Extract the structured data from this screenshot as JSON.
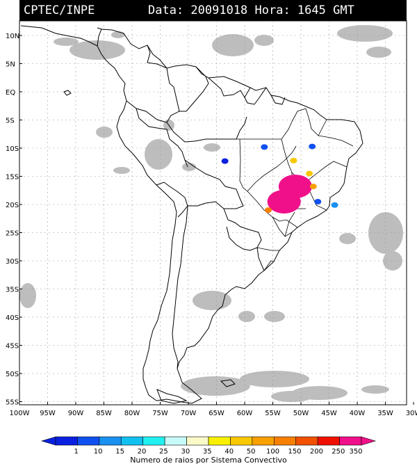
{
  "header": {
    "title": "CPTEC/INPE",
    "datetime": "Data: 20091018 Hora: 1645 GMT"
  },
  "lat_labels": [
    "10N",
    "5N",
    "EQ",
    "5S",
    "10S",
    "15S",
    "20S",
    "25S",
    "30S",
    "35S",
    "40S",
    "45S",
    "50S",
    "55S"
  ],
  "lon_labels": [
    "100W",
    "95W",
    "90W",
    "85W",
    "80W",
    "75W",
    "70W",
    "65W",
    "60W",
    "55W",
    "50W",
    "45W",
    "40W",
    "35W",
    "30W"
  ],
  "colorbar": {
    "caption": "Numero de raios por Sistema Convectivo",
    "ticks": [
      "1",
      "10",
      "15",
      "20",
      "25",
      "30",
      "35",
      "40",
      "50",
      "100",
      "150",
      "200",
      "250",
      "350"
    ],
    "colors": [
      "#0a20e0",
      "#1050f0",
      "#1a90f0",
      "#10c0f0",
      "#20f0f0",
      "#c8fafa",
      "#fafac8",
      "#f8f000",
      "#f8c800",
      "#f8a000",
      "#f88000",
      "#f05000",
      "#f01000",
      "#f0108a"
    ]
  },
  "colors": {
    "cloud": "#bdbdbd",
    "map_line": "#000000",
    "grid": "#888888"
  },
  "convective_systems": [
    {
      "lon": -53.0,
      "lat": -19.5,
      "color": "#f0108a"
    },
    {
      "lon": -51.0,
      "lat": -16.8,
      "color": "#f0108a"
    },
    {
      "lon": -55.8,
      "lat": -21.0,
      "color": "#f88000"
    },
    {
      "lon": -51.3,
      "lat": -12.2,
      "color": "#f8c800"
    },
    {
      "lon": -48.5,
      "lat": -14.5,
      "color": "#f8c800"
    },
    {
      "lon": -47.8,
      "lat": -16.8,
      "color": "#f8a000"
    },
    {
      "lon": -56.5,
      "lat": -9.8,
      "color": "#1050f0"
    },
    {
      "lon": -63.5,
      "lat": -12.3,
      "color": "#0a20e0"
    },
    {
      "lon": -48.0,
      "lat": -9.7,
      "color": "#1050f0"
    },
    {
      "lon": -47.0,
      "lat": -19.5,
      "color": "#1050f0"
    },
    {
      "lon": -44.0,
      "lat": -20.1,
      "color": "#1a90f0"
    }
  ]
}
